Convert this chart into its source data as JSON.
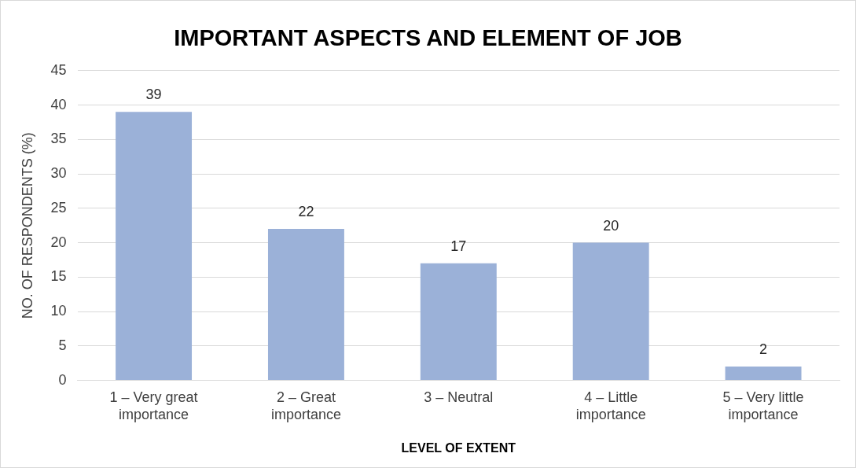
{
  "chart_data": {
    "type": "bar",
    "title": "IMPORTANT ASPECTS AND ELEMENT OF JOB",
    "xlabel": "LEVEL OF EXTENT",
    "ylabel": "NO. OF RESPONDENTS (%)",
    "categories": [
      "1 – Very great importance",
      "2 – Great importance",
      "3 – Neutral",
      "4 – Little importance",
      "5 – Very little importance"
    ],
    "values": [
      39,
      22,
      17,
      20,
      2
    ],
    "color": "#9bb1d8",
    "ylim": [
      0,
      45
    ],
    "yticks": [
      0,
      5,
      10,
      15,
      20,
      25,
      30,
      35,
      40,
      45
    ],
    "grid": "y",
    "data_labels": true,
    "legend": false
  }
}
